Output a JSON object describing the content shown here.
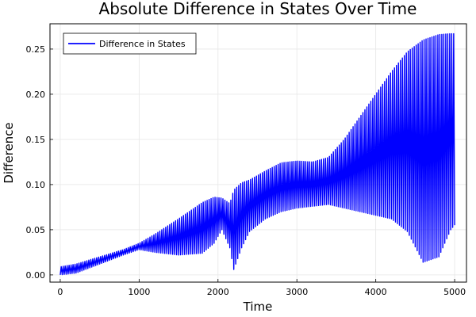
{
  "chart_data": {
    "type": "line",
    "title": "Absolute Difference in States Over Time",
    "xlabel": "Time",
    "ylabel": "Difference",
    "xlim": [
      -130,
      5150
    ],
    "ylim": [
      -0.008,
      0.278
    ],
    "x_ticks": [
      0,
      1000,
      2000,
      3000,
      4000,
      5000
    ],
    "x_tick_labels": [
      "0",
      "1000",
      "2000",
      "3000",
      "4000",
      "5000"
    ],
    "y_ticks": [
      0.0,
      0.05,
      0.1,
      0.15,
      0.2,
      0.25
    ],
    "y_tick_labels": [
      "0.00",
      "0.05",
      "0.10",
      "0.15",
      "0.20",
      "0.25"
    ],
    "grid": true,
    "legend_position": "top-left",
    "oscillation_period": 25,
    "series": [
      {
        "name": "Difference in States",
        "color": "#0000ff",
        "envelope": {
          "x": [
            0,
            200,
            500,
            800,
            1000,
            1200,
            1500,
            1800,
            1950,
            2050,
            2150,
            2200,
            2300,
            2400,
            2600,
            2800,
            3000,
            3200,
            3400,
            3600,
            3800,
            4000,
            4200,
            4400,
            4600,
            4800,
            4950,
            5000
          ],
          "upper": [
            0.009,
            0.012,
            0.02,
            0.028,
            0.035,
            0.045,
            0.062,
            0.08,
            0.086,
            0.085,
            0.079,
            0.094,
            0.102,
            0.105,
            0.115,
            0.124,
            0.126,
            0.125,
            0.13,
            0.15,
            0.175,
            0.2,
            0.225,
            0.247,
            0.26,
            0.266,
            0.267,
            0.267
          ],
          "lower": [
            0.0,
            0.002,
            0.012,
            0.022,
            0.028,
            0.025,
            0.022,
            0.024,
            0.035,
            0.05,
            0.03,
            0.006,
            0.03,
            0.048,
            0.062,
            0.07,
            0.074,
            0.076,
            0.078,
            0.074,
            0.07,
            0.066,
            0.062,
            0.048,
            0.014,
            0.02,
            0.05,
            0.055
          ]
        }
      }
    ]
  }
}
